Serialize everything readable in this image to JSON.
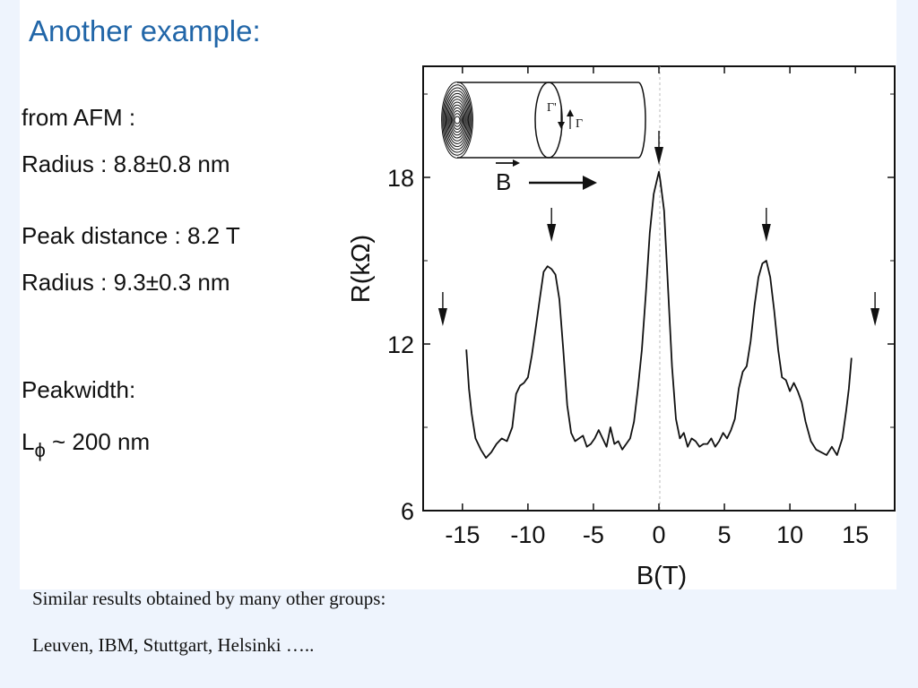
{
  "slide": {
    "title": "Another example:",
    "afm_heading": "from AFM :",
    "afm_radius": "Radius : 8.8±0.8 nm",
    "peak_distance": "Peak distance : 8.2 T",
    "peak_radius": "Radius : 9.3±0.3 nm",
    "peakwidth_heading": "Peakwidth:",
    "lphi_letter": "L",
    "lphi_sub": "ϕ",
    "lphi_value": " ~ 200 nm",
    "caption1": "Similar results obtained by many other groups:",
    "caption2": "Leuven, IBM, Stuttgart, Helsinki ….."
  },
  "colors": {
    "title": "#2166a8",
    "background": "#eef4fd",
    "panel": "#ffffff",
    "curve": "#111111"
  },
  "chart_data": {
    "type": "line",
    "xlabel": "B(T)",
    "ylabel": "R(kΩ)",
    "xlim": [
      -18,
      18
    ],
    "ylim": [
      6,
      22
    ],
    "xticks": [
      -15,
      -10,
      -5,
      0,
      5,
      10,
      15
    ],
    "xtick_labels": [
      "-15",
      "-10",
      "-5",
      "0",
      "5",
      "10",
      "15"
    ],
    "yticks": [
      6,
      12,
      18
    ],
    "ytick_labels": [
      "6",
      "12",
      "18"
    ],
    "grid": false,
    "series": [
      {
        "x": [
          -14.7,
          -14.5,
          -14.3,
          -14.0,
          -13.6,
          -13.2,
          -12.8,
          -12.4,
          -12.0,
          -11.6,
          -11.2,
          -10.9,
          -10.6,
          -10.3,
          -10.0,
          -9.7,
          -9.4,
          -9.1,
          -8.8,
          -8.5,
          -8.2,
          -7.9,
          -7.6,
          -7.3,
          -7.0,
          -6.7,
          -6.4,
          -6.1,
          -5.8,
          -5.5,
          -5.2,
          -4.9,
          -4.6,
          -4.3,
          -4.0,
          -3.7,
          -3.4,
          -3.1,
          -2.8,
          -2.5,
          -2.2,
          -1.9,
          -1.6,
          -1.3,
          -1.0,
          -0.7,
          -0.4,
          -0.1,
          0.0,
          0.1,
          0.4,
          0.7,
          1.0,
          1.3,
          1.6,
          1.9,
          2.2,
          2.5,
          2.8,
          3.1,
          3.4,
          3.7,
          4.0,
          4.3,
          4.6,
          4.9,
          5.2,
          5.5,
          5.8,
          6.1,
          6.4,
          6.7,
          7.0,
          7.3,
          7.6,
          7.9,
          8.2,
          8.5,
          8.8,
          9.1,
          9.4,
          9.7,
          10.0,
          10.3,
          10.6,
          10.9,
          11.2,
          11.6,
          12.0,
          12.4,
          12.8,
          13.2,
          13.6,
          14.0,
          14.3,
          14.5,
          14.7
        ],
        "y": [
          11.8,
          10.4,
          9.5,
          8.6,
          8.2,
          7.9,
          8.1,
          8.4,
          8.6,
          8.5,
          9.0,
          10.2,
          10.5,
          10.6,
          10.8,
          11.6,
          12.6,
          13.6,
          14.6,
          14.8,
          14.7,
          14.5,
          13.6,
          11.8,
          9.8,
          8.8,
          8.5,
          8.6,
          8.7,
          8.3,
          8.4,
          8.6,
          8.9,
          8.6,
          8.3,
          9.0,
          8.4,
          8.5,
          8.2,
          8.4,
          8.6,
          9.2,
          10.4,
          11.8,
          13.8,
          16.0,
          17.4,
          18.0,
          18.2,
          17.9,
          16.8,
          14.0,
          11.2,
          9.3,
          8.6,
          8.8,
          8.3,
          8.6,
          8.5,
          8.3,
          8.4,
          8.4,
          8.6,
          8.3,
          8.5,
          8.8,
          8.6,
          8.9,
          9.3,
          10.4,
          11.0,
          11.2,
          12.1,
          13.4,
          14.4,
          14.9,
          15.0,
          14.4,
          13.2,
          11.8,
          10.8,
          10.7,
          10.3,
          10.6,
          10.3,
          9.9,
          9.2,
          8.5,
          8.2,
          8.1,
          8.0,
          8.3,
          8.0,
          8.6,
          9.6,
          10.4,
          11.5
        ]
      }
    ],
    "annotations": {
      "arrow_x_positions": [
        -16.5,
        -8.2,
        0,
        8.2,
        16.5
      ],
      "inset_field_label": "B",
      "inset_flux_label_1": "Γ'",
      "inset_flux_label_2": "Γ"
    }
  }
}
